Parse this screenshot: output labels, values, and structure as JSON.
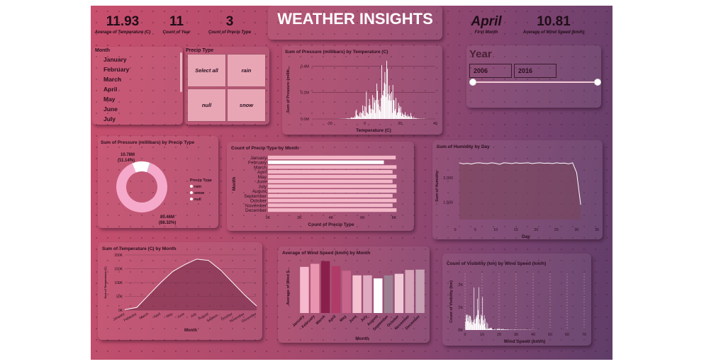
{
  "title": "WEATHER INSIGHTS",
  "kpis": {
    "avg_temp": {
      "value": "11.93",
      "label": "Average of Temperature (C)"
    },
    "count_year": {
      "value": "11",
      "label": "Count of Year"
    },
    "count_precip": {
      "value": "3",
      "label": "Count of Precip Type"
    },
    "first_month": {
      "value": "April",
      "label": "First Month"
    },
    "avg_wind": {
      "value": "10.81",
      "label": "Average of Wind Speed (km/h)"
    }
  },
  "month_slicer": {
    "title": "Month",
    "items": [
      "January",
      "February",
      "March",
      "April",
      "May",
      "June",
      "July"
    ]
  },
  "precip_slicer": {
    "title": "Precip Type",
    "items": [
      "Select all",
      "rain",
      "null",
      "snow"
    ]
  },
  "year_slicer": {
    "title": "Year",
    "start": "2006",
    "end": "2016"
  },
  "colors": {
    "pink_light": "#f5c1d0",
    "pink_mid": "#e5a0b5",
    "white": "#ffffff",
    "grid": "#6e2f47"
  },
  "chart_data": [
    {
      "type": "bar",
      "title": "Sum of Pressure (millibars) by Temperature (C)",
      "xlabel": "Temperature (C)",
      "ylabel": "Sum of Pressure (millib...",
      "x_ticks": [
        "-20",
        "0",
        "20",
        "40"
      ],
      "y_ticks": [
        "0.0M",
        "0.2M",
        "0.4M"
      ],
      "xlim": [
        -30,
        40
      ],
      "ylim": [
        0,
        0.45
      ]
    },
    {
      "type": "pie",
      "title": "Sum of Pressure (millibars) by Precip Type",
      "legend_title": "Precip Type",
      "legend": [
        "rain",
        "snow",
        "null"
      ],
      "slices": [
        {
          "name": "rain",
          "value": 85.46,
          "label": "85.46M",
          "pct": "(88.32%)",
          "color": "#f5aacb"
        },
        {
          "name": "snow",
          "value": 10.78,
          "label": "10.78M",
          "pct": "(11.14%)",
          "color": "#ffffff"
        },
        {
          "name": "null",
          "value": 0.52,
          "color": "#c9d1e8"
        }
      ]
    },
    {
      "type": "bar",
      "title": "Count of Precip Type by Month",
      "xlabel": "Count of Precip Type",
      "ylabel": "Month",
      "categories": [
        "January",
        "February",
        "March",
        "April",
        "May",
        "June",
        "July",
        "August",
        "September",
        "October",
        "November",
        "December"
      ],
      "values": [
        8100,
        7350,
        8150,
        7900,
        8150,
        7900,
        8150,
        8150,
        7900,
        8150,
        7900,
        8150
      ],
      "x_ticks": [
        "0K",
        "2K",
        "4K",
        "6K",
        "8K"
      ],
      "xlim": [
        0,
        8000
      ]
    },
    {
      "type": "area",
      "title": "Sum of Humidity by Day",
      "xlabel": "Day",
      "ylabel": "Sum of Humidity",
      "x": [
        1,
        2,
        3,
        4,
        5,
        6,
        7,
        8,
        9,
        10,
        11,
        12,
        13,
        14,
        15,
        16,
        17,
        18,
        19,
        20,
        21,
        22,
        23,
        24,
        25,
        26,
        27,
        28,
        29,
        30,
        31
      ],
      "values": [
        2300,
        2280,
        2290,
        2275,
        2295,
        2300,
        2290,
        2285,
        2300,
        2290,
        2270,
        2300,
        2295,
        2285,
        2300,
        2290,
        2295,
        2300,
        2285,
        2295,
        2300,
        2290,
        2295,
        2285,
        2300,
        2290,
        2295,
        2280,
        2300,
        2100,
        1450
      ],
      "x_ticks": [
        "0",
        "5",
        "10",
        "15",
        "20",
        "25",
        "30",
        "35"
      ],
      "y_ticks": [
        "1,500",
        "2,000"
      ],
      "xlim": [
        0,
        35
      ],
      "ylim": [
        1150,
        2500
      ]
    },
    {
      "type": "area",
      "title": "Sum of Temperature (C) by Month",
      "xlabel": "Month",
      "ylabel": "Sum of Temperature (C)",
      "categories": [
        "January",
        "February",
        "March",
        "April",
        "May",
        "June",
        "July",
        "August",
        "Septem...",
        "October",
        "November",
        "December"
      ],
      "values": [
        2000,
        10000,
        55000,
        100000,
        140000,
        165000,
        185000,
        180000,
        145000,
        100000,
        55000,
        15000
      ],
      "y_ticks": [
        "0K",
        "50K",
        "100K",
        "150K",
        "200K"
      ],
      "ylim": [
        0,
        200000
      ]
    },
    {
      "type": "bar",
      "title": "Average of Wind Speed (km/h) by Month",
      "xlabel": "Month",
      "ylabel": "Average of Wind S...",
      "categories": [
        "January",
        "February",
        "March",
        "April",
        "May",
        "June",
        "July",
        "August",
        "September",
        "October",
        "November",
        "December"
      ],
      "values": [
        12.0,
        12.8,
        13.5,
        12.2,
        11.0,
        9.8,
        9.8,
        9.0,
        9.8,
        10.2,
        11.2,
        11.3
      ],
      "colors": [
        "#f5b8cc",
        "#e995b0",
        "#8a1f4c",
        "#b03a68",
        "#c6658a",
        "#f5c1d0",
        "#e0aac0",
        "#ffffff",
        "#9c8092",
        "#f0c8d6",
        "#d7a3b8",
        "#c7a0b4"
      ],
      "ylim": [
        0,
        14
      ]
    },
    {
      "type": "bar",
      "title": "Count of Visibility (km) by Wind Speed (km/h)",
      "xlabel": "Wind Speed (km/h)",
      "ylabel": "Count of Visibility (km)",
      "x_ticks": [
        "0",
        "10",
        "20",
        "30",
        "40",
        "50",
        "60",
        "70"
      ],
      "y_ticks": [
        "0K",
        "1K",
        "2K"
      ],
      "xlim": [
        0,
        70
      ],
      "ylim": [
        0,
        2.5
      ]
    }
  ]
}
